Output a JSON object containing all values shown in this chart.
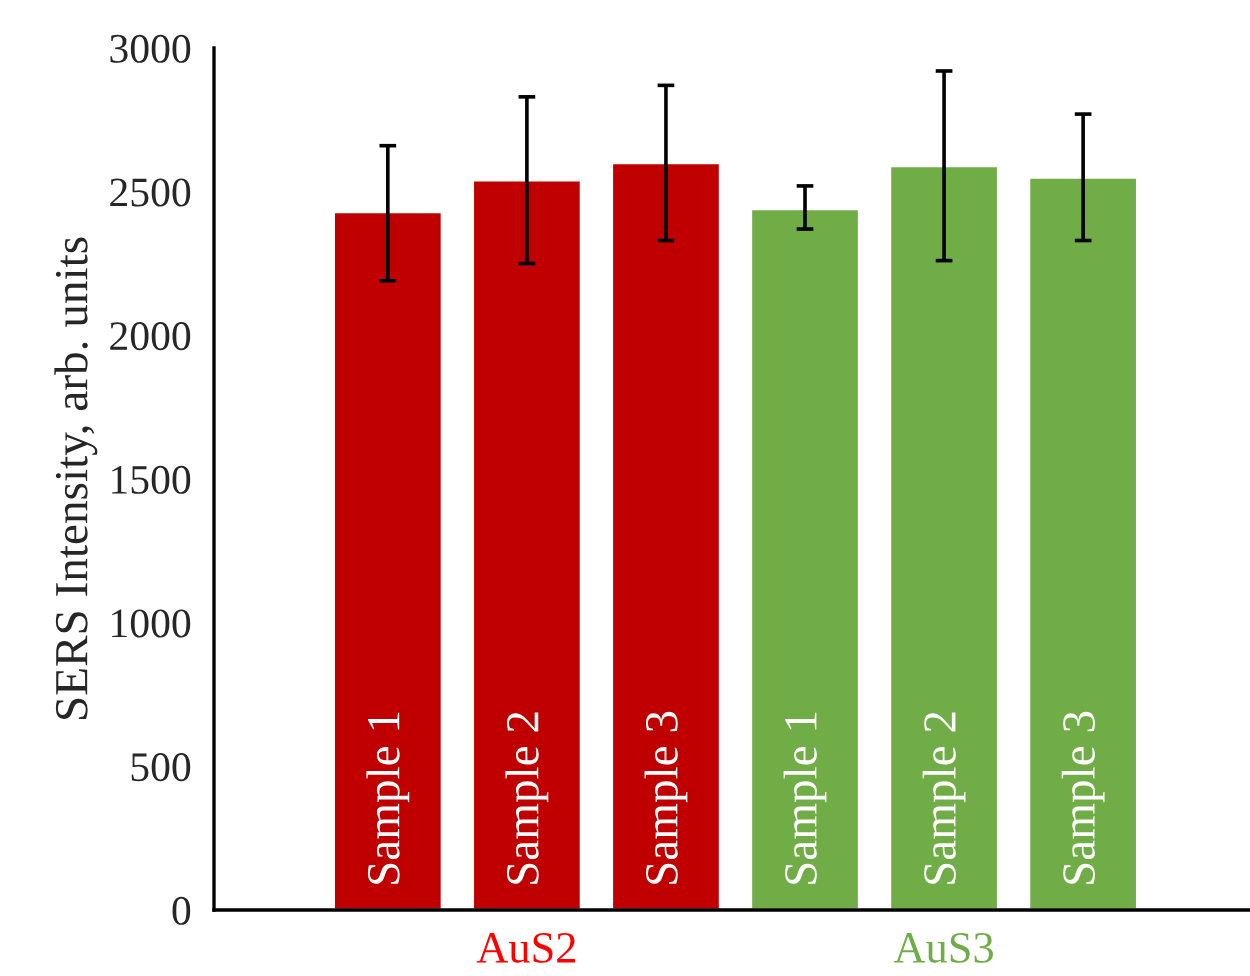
{
  "chart_data": {
    "type": "bar",
    "ylabel": "SERS Intensity, arb. units",
    "categories": [
      "Sample 1",
      "Sample 2",
      "Sample 3",
      "Sample 1",
      "Sample 2",
      "Sample 3"
    ],
    "values": [
      2430,
      2540,
      2600,
      2440,
      2590,
      2550
    ],
    "errors": [
      [
        2190,
        2660
      ],
      [
        2250,
        2830
      ],
      [
        2330,
        2870
      ],
      [
        2370,
        2520
      ],
      [
        2260,
        2920
      ],
      [
        2330,
        2770
      ]
    ],
    "colors": [
      "#c00000",
      "#c00000",
      "#c00000",
      "#70ad47",
      "#70ad47",
      "#70ad47"
    ],
    "annotations": [
      "AuS2",
      "AuS3"
    ],
    "ylim": [
      0,
      3000
    ],
    "yticks": [
      0,
      500,
      1000,
      1500,
      2000,
      2500,
      3000
    ],
    "grid": false,
    "legend": false
  }
}
